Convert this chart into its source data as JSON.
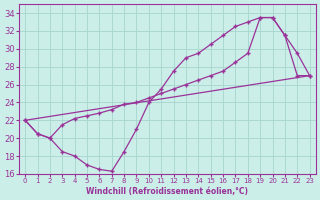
{
  "xlabel": "Windchill (Refroidissement éolien,°C)",
  "background_color": "#cceee8",
  "grid_color": "#aad8d0",
  "line_color": "#993399",
  "ylim": [
    16,
    35
  ],
  "xlim": [
    -0.5,
    23.5
  ],
  "yticks": [
    16,
    18,
    20,
    22,
    24,
    26,
    28,
    30,
    32,
    34
  ],
  "xticks": [
    0,
    1,
    2,
    3,
    4,
    5,
    6,
    7,
    8,
    9,
    10,
    11,
    12,
    13,
    14,
    15,
    16,
    17,
    18,
    19,
    20,
    21,
    22,
    23
  ],
  "line1_x": [
    0,
    1,
    2,
    3,
    4,
    5,
    6,
    7,
    8,
    9,
    10,
    11,
    12,
    13,
    14,
    15,
    16,
    17,
    18,
    19,
    20,
    21,
    22,
    23
  ],
  "line1_y": [
    22.0,
    20.5,
    20.0,
    18.5,
    18.0,
    17.0,
    16.5,
    16.3,
    18.5,
    21.0,
    24.0,
    25.5,
    27.5,
    29.0,
    29.5,
    30.5,
    31.5,
    32.5,
    33.0,
    33.5,
    33.5,
    31.5,
    29.5,
    27.0
  ],
  "line2_x": [
    0,
    1,
    2,
    3,
    4,
    5,
    6,
    7,
    8,
    9,
    10,
    11,
    12,
    13,
    14,
    15,
    16,
    17,
    18,
    19,
    20,
    21,
    22,
    23
  ],
  "line2_y": [
    22.0,
    20.5,
    20.0,
    21.5,
    22.2,
    22.5,
    22.8,
    23.2,
    23.8,
    24.0,
    24.5,
    25.0,
    25.5,
    26.0,
    26.5,
    27.0,
    27.5,
    28.5,
    29.5,
    33.5,
    33.5,
    31.5,
    27.0,
    27.0
  ],
  "line3_x": [
    0,
    23
  ],
  "line3_y": [
    22.0,
    27.0
  ]
}
